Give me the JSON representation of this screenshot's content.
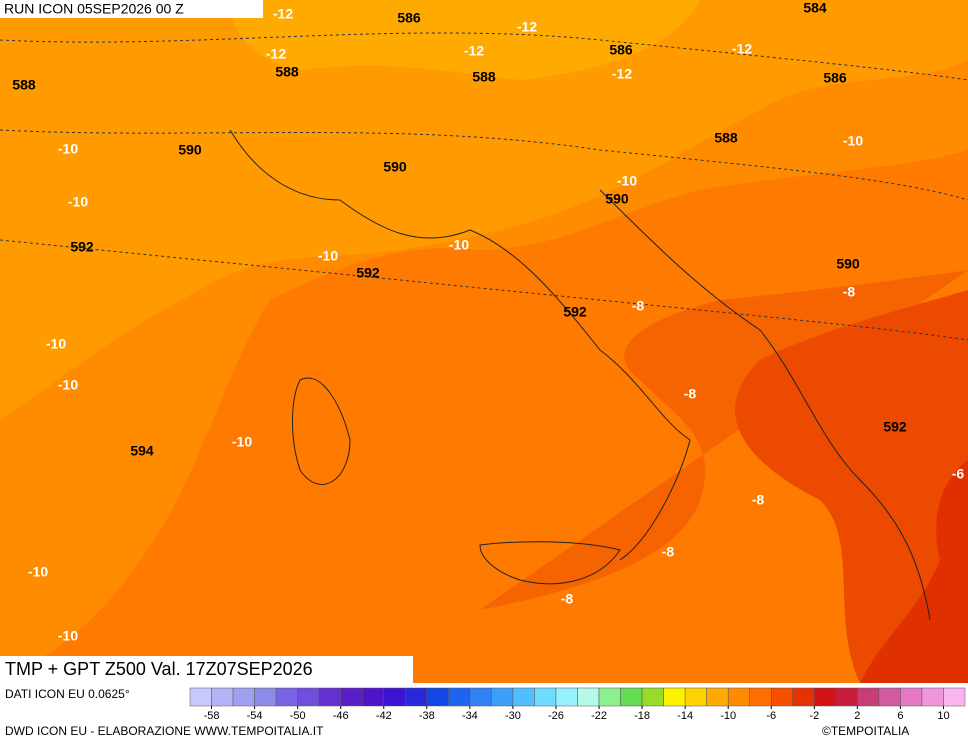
{
  "header": {
    "run": "RUN ICON 05SEP2026 00 Z"
  },
  "map": {
    "title": "TMP + GPT Z500 Val. 17Z07SEP2026",
    "contour_labels": {
      "temperature": [
        "-12",
        "-12",
        "-12",
        "-12",
        "-12",
        "-12",
        "-10",
        "-10",
        "-10",
        "-10",
        "-10",
        "-10",
        "-8",
        "-8",
        "-8",
        "-8",
        "-8",
        "-8",
        "-6",
        "-10",
        "-10",
        "-10",
        "-10",
        "-10"
      ],
      "geopotential": [
        "586",
        "584",
        "586",
        "588",
        "588",
        "586",
        "588",
        "588",
        "590",
        "590",
        "590",
        "592",
        "592",
        "590",
        "592",
        "592",
        "594"
      ]
    }
  },
  "legend": {
    "colors": [
      "#c8c8ff",
      "#b4b4f5",
      "#a0a0f0",
      "#8c8ce8",
      "#7a64e6",
      "#6e50dc",
      "#6432d2",
      "#5a1ec8",
      "#5014c8",
      "#3c14d2",
      "#2828dc",
      "#1446e6",
      "#1e64f0",
      "#3282f5",
      "#3ca0fa",
      "#50beff",
      "#6edcff",
      "#96f0ff",
      "#b4fae6",
      "#8cf08c",
      "#64dc50",
      "#96dc28",
      "#fff000",
      "#ffd200",
      "#ffaa00",
      "#ff8c00",
      "#ff6e00",
      "#f55000",
      "#e63200",
      "#d21414",
      "#c81e3c",
      "#c83c78",
      "#d25aa0",
      "#e678c8",
      "#f096dc",
      "#fab4f0"
    ],
    "ticks": [
      -58,
      -54,
      -50,
      -46,
      -42,
      -38,
      -34,
      -30,
      -26,
      -22,
      -18,
      -14,
      -10,
      -6,
      -2,
      2,
      6,
      10
    ]
  },
  "footer": {
    "source": "DATI ICON EU 0.0625°",
    "credit": "DWD ICON EU - ELABORAZIONE WWW.TEMPOITALIA.IT",
    "copyright": "©TEMPOITALIA"
  }
}
